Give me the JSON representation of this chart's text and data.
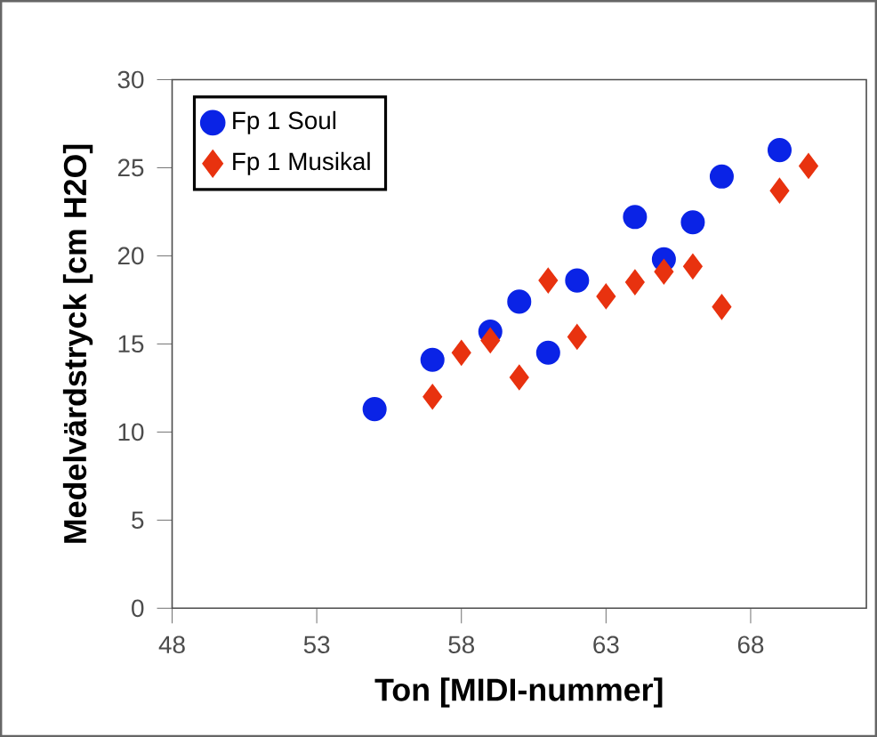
{
  "chart_data": {
    "type": "scatter",
    "xlabel": "Ton [MIDI-nummer]",
    "ylabel": "Medelvärdstryck [cm H2O]",
    "xlim": [
      48,
      72
    ],
    "xticks": [
      48,
      53,
      58,
      63,
      68
    ],
    "ylim": [
      0,
      30
    ],
    "yticks": [
      0,
      5,
      10,
      15,
      20,
      25,
      30
    ],
    "legend": "top left",
    "grid": false,
    "series": [
      {
        "name": "Fp 1 Soul",
        "color": "#0a23e6",
        "marker": "circle",
        "x": [
          55,
          57,
          59,
          60,
          61,
          62,
          64,
          65,
          66,
          67,
          69
        ],
        "values": [
          11.3,
          14.1,
          15.7,
          17.4,
          14.5,
          18.6,
          22.2,
          19.8,
          21.9,
          24.5,
          26.0
        ]
      },
      {
        "name": "Fp 1 Musikal",
        "color": "#e8320f",
        "marker": "diamond",
        "x": [
          57,
          58,
          59,
          60,
          61,
          62,
          63,
          64,
          65,
          66,
          67,
          69,
          70
        ],
        "values": [
          12.0,
          14.5,
          15.2,
          13.1,
          18.6,
          15.4,
          17.7,
          18.5,
          19.1,
          19.4,
          17.1,
          23.7,
          25.1
        ]
      }
    ]
  }
}
